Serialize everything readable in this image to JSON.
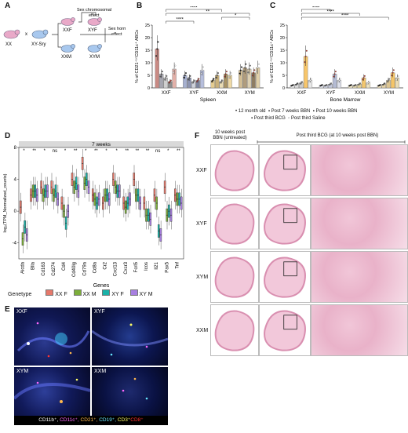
{
  "panels": {
    "A": {
      "letter": "A",
      "xx": "XX",
      "xysry": "XY-Sry",
      "cross": "x",
      "chrom": "Sex chromosomal effect",
      "horm": "Sex hormonal effect",
      "xxf": "XXF",
      "xyf": "XYF",
      "xxm": "XXM",
      "xym": "XYM"
    },
    "B": {
      "letter": "B"
    },
    "C": {
      "letter": "C"
    },
    "D": {
      "letter": "D"
    },
    "E": {
      "letter": "E",
      "tiles": [
        "XXF",
        "XYF",
        "XYM",
        "XXM"
      ],
      "markers": [
        {
          "text": "CD11b⁺,",
          "color": "#ffffff"
        },
        {
          "text": "CD11c⁺,",
          "color": "#ff66ff"
        },
        {
          "text": "CD21⁺,",
          "color": "#ffb84d"
        },
        {
          "text": "CD19⁺,",
          "color": "#66e6ff"
        },
        {
          "text": "CD3⁺",
          "color": "#ffff66"
        },
        {
          "text": "CD8⁺",
          "color": "#ff3333"
        }
      ]
    },
    "F": {
      "letter": "F",
      "col1": "10 weeks post BBN (untreated)",
      "col2": "Post third BCG (at 10 weeks post BBN)",
      "rows": [
        "XXF",
        "XYF",
        "XYM",
        "XXM"
      ]
    }
  },
  "legendBC": [
    {
      "label": "12 month old",
      "symbol": "•"
    },
    {
      "label": "Post 7 weeks BBN",
      "symbol": "▪"
    },
    {
      "label": "Post 10 weeks BBN",
      "symbol": "▪"
    },
    {
      "label": "Post third BCG",
      "symbol": "▪"
    },
    {
      "label": "Post third Saline",
      "symbol": "◦"
    }
  ],
  "legendD": {
    "title": "Genetype",
    "items": [
      {
        "label": "XX F",
        "color": "#e6796b"
      },
      {
        "label": "XX M",
        "color": "#7cae3a"
      },
      {
        "label": "XY F",
        "color": "#19b2a8"
      },
      {
        "label": "XY M",
        "color": "#a77fe0"
      }
    ]
  },
  "colors": {
    "xxf_bar": "#f0d8d0",
    "xyf_bar": "#d8dff0",
    "xxm_bar": "#f3e4c0",
    "xym_bar": "#e9dcc2",
    "c_xxf": "#f7c56a",
    "c_xym": "#f7c56a"
  },
  "chart_data": [
    {
      "id": "B",
      "type": "bar",
      "title": "Spleen",
      "ylabel": "% of CD21⁻ᴸᵒCD11c⁺ ABCs",
      "xlabel": "Spleen",
      "ylim": [
        0,
        25
      ],
      "yticks": [
        0,
        5,
        10,
        15,
        20,
        25
      ],
      "categories": [
        "XXF",
        "XYF",
        "XXM",
        "XYM"
      ],
      "series": [
        {
          "values": [
            15.5,
            5,
            3,
            7
          ]
        },
        {
          "values": [
            5.5,
            4,
            5,
            8
          ]
        },
        {
          "values": [
            4,
            2.5,
            2.5,
            7.5
          ]
        },
        {
          "values": [
            2.5,
            3,
            5.5,
            6
          ]
        },
        {
          "values": [
            7.5,
            7,
            5,
            8
          ]
        }
      ],
      "significance": [
        {
          "from": 0,
          "to": 2,
          "label": "****"
        },
        {
          "from": 0,
          "to": 3,
          "label": "**"
        },
        {
          "from": 2,
          "to": 3,
          "label": "*"
        },
        {
          "from": 0,
          "to": 1,
          "label": "****"
        }
      ]
    },
    {
      "id": "C",
      "type": "bar",
      "title": "Bone Marrow",
      "ylabel": "% of CD21⁻ᴸᵒCD11c⁺ ABCs",
      "xlabel": "Bone Marrow",
      "ylim": [
        0,
        25
      ],
      "yticks": [
        0,
        5,
        10,
        15,
        20,
        25
      ],
      "categories": [
        "XXF",
        "XYF",
        "XXM",
        "XYM"
      ],
      "series": [
        {
          "values": [
            1,
            1,
            1,
            1
          ]
        },
        {
          "values": [
            1.5,
            1,
            1,
            1.5
          ]
        },
        {
          "values": [
            2,
            1.5,
            1.5,
            3
          ]
        },
        {
          "values": [
            12.5,
            5.5,
            4,
            6
          ]
        },
        {
          "values": [
            3,
            3,
            2,
            4
          ]
        }
      ],
      "significance": [
        {
          "from": 0,
          "to": 1,
          "label": "****"
        },
        {
          "from": 0,
          "to": 2,
          "label": "****"
        },
        {
          "from": 0,
          "to": 3,
          "label": "****"
        }
      ]
    },
    {
      "id": "D",
      "type": "box",
      "title": "7 weeks",
      "ylabel": "log₂(TPM_Normalized_counts)",
      "xlabel": "Genes",
      "ylim": [
        -6,
        8
      ],
      "yticks": [
        -4,
        0,
        4,
        8
      ],
      "categories": [
        "Aicda",
        "Blla",
        "Cd163",
        "Cd274",
        "Cd4",
        "Cd40lg",
        "Cd79a",
        "Cd8a",
        "Cr2",
        "Cxcl13",
        "Cxcr3",
        "Fcrl5",
        "Icos",
        "Il21",
        "Pax5",
        "Tnf"
      ],
      "significance": [
        "*",
        "**",
        "*",
        "ns",
        "*",
        "**",
        "*",
        "**",
        "*",
        "*",
        "**",
        "**",
        "**",
        "ns",
        "*",
        "**"
      ],
      "series": [
        {
          "name": "XX F",
          "medians": [
            0.5,
            2,
            3,
            3,
            1,
            4,
            6,
            2,
            1,
            4,
            1,
            4,
            1,
            2,
            3,
            2
          ]
        },
        {
          "name": "XX M",
          "medians": [
            -3.5,
            2.5,
            2,
            2,
            0,
            3,
            3.5,
            1.5,
            2,
            3,
            0.5,
            2,
            -0.5,
            1,
            -0.5,
            1.5
          ]
        },
        {
          "name": "XY F",
          "medians": [
            -2,
            2.5,
            2.5,
            2.5,
            -1.5,
            3.5,
            4,
            1,
            2,
            2.5,
            1,
            2,
            -0.5,
            -2.5,
            0,
            1.5
          ]
        },
        {
          "name": "XY M",
          "medians": [
            -3,
            2,
            2.5,
            1.5,
            0,
            2.5,
            3,
            1.5,
            1.5,
            2.5,
            1.5,
            1,
            -1,
            -3,
            -0.5,
            1
          ]
        }
      ]
    }
  ]
}
